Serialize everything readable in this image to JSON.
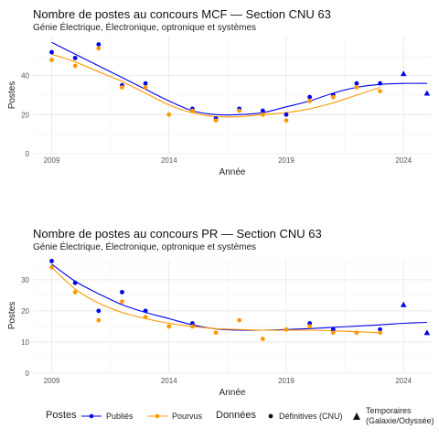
{
  "chart_data": [
    {
      "type": "scatter",
      "title": "Nombre de postes au concours MCF —  Section CNU 63",
      "subtitle": "Génie Électrique, Électronique, optronique et systèmes",
      "xlabel": "Année",
      "ylabel": "Postes",
      "x_ticks": [
        2009,
        2014,
        2019,
        2024
      ],
      "y_ticks": [
        0,
        20,
        40
      ],
      "xlim": [
        2008.2,
        2025.2
      ],
      "ylim": [
        0,
        60
      ],
      "grid": true,
      "series": [
        {
          "name": "Publiés",
          "color": "#0000ee",
          "data_type": "Définitives (CNU)",
          "x": [
            2009,
            2010,
            2011,
            2012,
            2013,
            2015,
            2016,
            2017,
            2018,
            2019,
            2020,
            2021,
            2022,
            2023
          ],
          "y": [
            52,
            49,
            56,
            35,
            36,
            23,
            18,
            23,
            22,
            20,
            29,
            30,
            36,
            36
          ]
        },
        {
          "name": "Pourvus",
          "color": "#ff9900",
          "data_type": "Définitives (CNU)",
          "x": [
            2009,
            2010,
            2011,
            2012,
            2013,
            2014,
            2015,
            2016,
            2017,
            2018,
            2019,
            2020,
            2021,
            2022,
            2023
          ],
          "y": [
            48,
            45,
            54,
            34,
            34,
            20,
            22,
            17,
            22,
            20,
            17,
            27,
            29,
            34,
            32
          ]
        },
        {
          "name": "Publiés",
          "color": "#0000ee",
          "data_type": "Temporaires (Galaxie/Odyssée)",
          "x": [
            2024,
            2025
          ],
          "y": [
            41,
            31
          ]
        }
      ],
      "trend_lines": [
        {
          "name": "Publiés",
          "color": "#0000ee",
          "x": [
            2009,
            2010,
            2011,
            2012,
            2013,
            2014,
            2015,
            2016,
            2017,
            2018,
            2019,
            2020,
            2021,
            2022,
            2023,
            2024,
            2025
          ],
          "y": [
            57,
            51,
            45,
            39,
            33,
            27,
            22,
            20,
            20,
            21,
            24,
            27,
            31,
            34,
            35.5,
            36,
            36
          ]
        },
        {
          "name": "Pourvus",
          "color": "#ff9900",
          "x": [
            2009,
            2010,
            2011,
            2012,
            2013,
            2014,
            2015,
            2016,
            2017,
            2018,
            2019,
            2020,
            2021,
            2022,
            2023
          ],
          "y": [
            51,
            47,
            42,
            37,
            31,
            25,
            21,
            19,
            19,
            20,
            21,
            23,
            26,
            30,
            34
          ]
        }
      ]
    },
    {
      "type": "scatter",
      "title": "Nombre de postes au concours PR —  Section CNU 63",
      "subtitle": "Génie Électrique, Électronique, optronique et systèmes",
      "xlabel": "Année",
      "ylabel": "Postes",
      "x_ticks": [
        2009,
        2014,
        2019,
        2024
      ],
      "y_ticks": [
        0,
        10,
        20,
        30
      ],
      "xlim": [
        2008.2,
        2025.2
      ],
      "ylim": [
        0,
        37
      ],
      "grid": true,
      "series": [
        {
          "name": "Publiés",
          "color": "#0000ee",
          "data_type": "Définitives (CNU)",
          "x": [
            2009,
            2010,
            2011,
            2012,
            2013,
            2015,
            2020,
            2021,
            2023
          ],
          "y": [
            36,
            29,
            20,
            26,
            20,
            16,
            16,
            14,
            14
          ]
        },
        {
          "name": "Pourvus",
          "color": "#ff9900",
          "data_type": "Définitives (CNU)",
          "x": [
            2009,
            2010,
            2011,
            2012,
            2013,
            2014,
            2015,
            2016,
            2017,
            2018,
            2019,
            2020,
            2021,
            2022,
            2023
          ],
          "y": [
            34,
            26,
            17,
            23,
            18,
            15,
            15,
            13,
            17,
            11,
            14,
            15,
            13,
            13,
            13
          ]
        },
        {
          "name": "Publiés",
          "color": "#0000ee",
          "data_type": "Temporaires (Galaxie/Odyssée)",
          "x": [
            2024,
            2025
          ],
          "y": [
            22,
            13
          ]
        }
      ],
      "trend_lines": [
        {
          "name": "Publiés",
          "color": "#0000ee",
          "x": [
            2009,
            2010,
            2011,
            2012,
            2013,
            2014,
            2015,
            2016,
            2017,
            2018,
            2019,
            2020,
            2021,
            2022,
            2023,
            2024,
            2025
          ],
          "y": [
            35,
            29.5,
            25.5,
            22,
            19.5,
            17.5,
            15.5,
            14.2,
            13.8,
            13.8,
            14,
            14.3,
            14.7,
            15.1,
            15.5,
            16,
            16.3
          ]
        },
        {
          "name": "Pourvus",
          "color": "#ff9900",
          "x": [
            2009,
            2010,
            2011,
            2012,
            2013,
            2014,
            2015,
            2016,
            2017,
            2018,
            2019,
            2020,
            2021,
            2022,
            2023
          ],
          "y": [
            34,
            27,
            22.5,
            19.5,
            17.5,
            16,
            15,
            14.3,
            14,
            13.8,
            13.8,
            13.8,
            13.6,
            13.3,
            13
          ]
        }
      ]
    }
  ],
  "legend": {
    "postes_title": "Postes",
    "postes_items": [
      {
        "label": "Publiés",
        "color": "#0000ee"
      },
      {
        "label": "Pourvus",
        "color": "#ff9900"
      }
    ],
    "donnees_title": "Données",
    "donnees_items": [
      {
        "label": "Définitives (CNU)",
        "shape": "circle"
      },
      {
        "label_line1": "Temporaires",
        "label_line2": "(Galaxie/Odyssée)",
        "shape": "triangle"
      }
    ]
  }
}
